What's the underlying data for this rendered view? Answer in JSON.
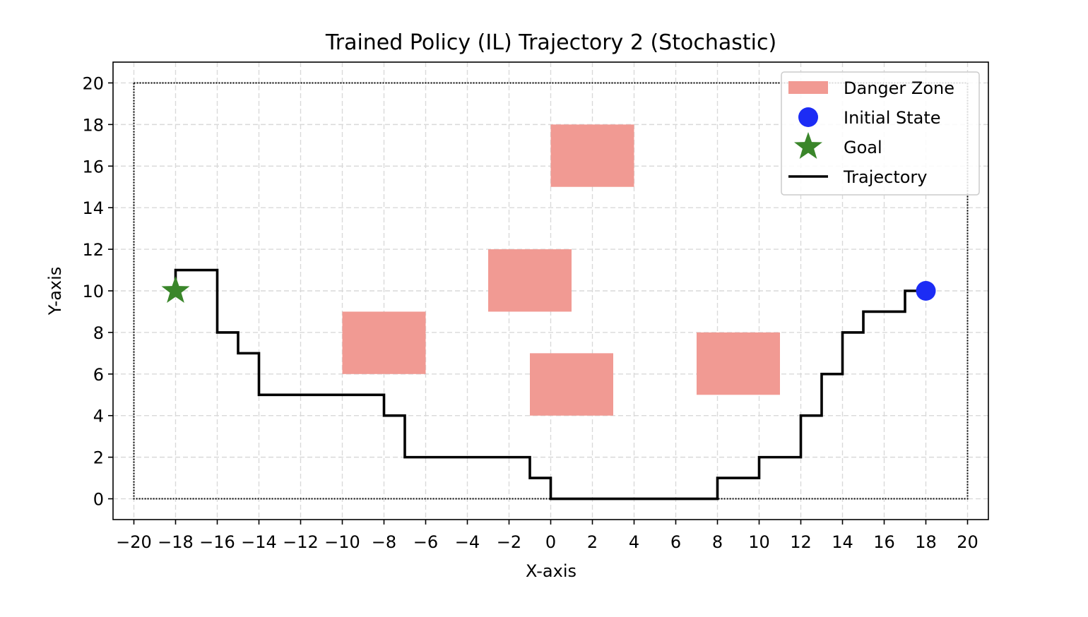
{
  "chart_data": {
    "type": "line",
    "title": "Trained Policy (IL) Trajectory 2 (Stochastic)",
    "xlabel": "X-axis",
    "ylabel": "Y-axis",
    "xlim": [
      -21,
      21
    ],
    "ylim": [
      -1,
      21
    ],
    "xticks": [
      -20,
      -18,
      -16,
      -14,
      -12,
      -10,
      -8,
      -6,
      -4,
      -2,
      0,
      2,
      4,
      6,
      8,
      10,
      12,
      14,
      16,
      18,
      20
    ],
    "yticks": [
      0,
      2,
      4,
      6,
      8,
      10,
      12,
      14,
      16,
      18,
      20
    ],
    "xtick_labels": [
      "−20",
      "−18",
      "−16",
      "−14",
      "−12",
      "−10",
      "−8",
      "−6",
      "−4",
      "−2",
      "0",
      "2",
      "4",
      "6",
      "8",
      "10",
      "12",
      "14",
      "16",
      "18",
      "20"
    ],
    "ytick_labels": [
      "0",
      "2",
      "4",
      "6",
      "8",
      "10",
      "12",
      "14",
      "16",
      "18",
      "20"
    ],
    "grid": true,
    "boundary": {
      "x": [
        -20,
        20
      ],
      "y": [
        0,
        20
      ]
    },
    "danger_zones": [
      {
        "x": [
          0,
          4
        ],
        "y": [
          15,
          18
        ]
      },
      {
        "x": [
          -3,
          1
        ],
        "y": [
          9,
          12
        ]
      },
      {
        "x": [
          -10,
          -6
        ],
        "y": [
          6,
          9
        ]
      },
      {
        "x": [
          -1,
          3
        ],
        "y": [
          4,
          7
        ]
      },
      {
        "x": [
          7,
          11
        ],
        "y": [
          5,
          8
        ]
      }
    ],
    "initial_state": {
      "x": 18,
      "y": 10
    },
    "goal": {
      "x": -18,
      "y": 10
    },
    "trajectory": [
      [
        18,
        10
      ],
      [
        17,
        10
      ],
      [
        17,
        9
      ],
      [
        15,
        9
      ],
      [
        15,
        8
      ],
      [
        14,
        8
      ],
      [
        14,
        6
      ],
      [
        13,
        6
      ],
      [
        13,
        4
      ],
      [
        12,
        4
      ],
      [
        12,
        2
      ],
      [
        10,
        2
      ],
      [
        10,
        1
      ],
      [
        8,
        1
      ],
      [
        8,
        0
      ],
      [
        0,
        0
      ],
      [
        0,
        1
      ],
      [
        -1,
        1
      ],
      [
        -1,
        2
      ],
      [
        -7,
        2
      ],
      [
        -7,
        4
      ],
      [
        -8,
        4
      ],
      [
        -8,
        5
      ],
      [
        -14,
        5
      ],
      [
        -14,
        7
      ],
      [
        -15,
        7
      ],
      [
        -15,
        8
      ],
      [
        -16,
        8
      ],
      [
        -16,
        11
      ],
      [
        -18,
        11
      ],
      [
        -18,
        10
      ]
    ],
    "legend": {
      "position": "top-right",
      "entries": [
        "Danger Zone",
        "Initial State",
        "Goal",
        "Trajectory"
      ]
    },
    "colors": {
      "danger_zone": "#f19a93",
      "initial_state": "#1c2cf5",
      "goal": "#3a862a",
      "trajectory": "#000000",
      "grid": "#d9d9d9"
    }
  }
}
